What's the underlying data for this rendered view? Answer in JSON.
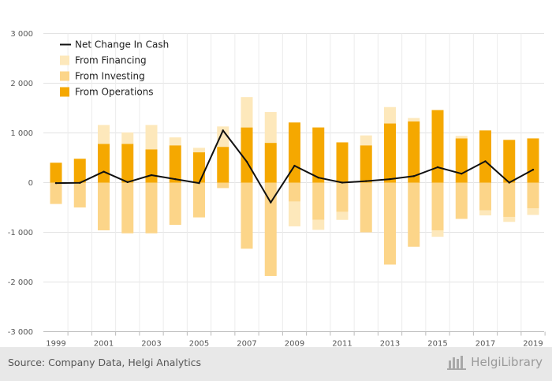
{
  "chart_data": {
    "type": "bar",
    "title": "",
    "xlabel": "",
    "ylabel": "",
    "ylim": [
      -3000,
      3000
    ],
    "yticks": [
      -3000,
      -2000,
      -1000,
      0,
      1000,
      2000,
      3000
    ],
    "ytick_labels": [
      "-3 000",
      "-2 000",
      "-1 000",
      "0",
      "1 000",
      "2 000",
      "3 000"
    ],
    "years": [
      1999,
      2000,
      2001,
      2002,
      2003,
      2004,
      2005,
      2006,
      2007,
      2008,
      2009,
      2010,
      2011,
      2012,
      2013,
      2014,
      2015,
      2016,
      2017,
      2018,
      2019
    ],
    "xtick_labels": [
      "1999",
      "2001",
      "2003",
      "2005",
      "2007",
      "2009",
      "2011",
      "2013",
      "2015",
      "2017",
      "2019"
    ],
    "grid": true,
    "legend_position": "top-left",
    "series": [
      {
        "name": "Net Change In Cash",
        "kind": "line",
        "color": "#111111",
        "values": [
          -10,
          -5,
          220,
          10,
          150,
          70,
          -10,
          1050,
          420,
          -400,
          340,
          100,
          0,
          30,
          70,
          130,
          310,
          180,
          430,
          0,
          260
        ]
      },
      {
        "name": "From Financing",
        "kind": "bar",
        "color": "#fde8bb",
        "values": [
          0,
          0,
          380,
          230,
          490,
          160,
          90,
          410,
          610,
          620,
          -500,
          -200,
          -160,
          200,
          330,
          70,
          -130,
          50,
          -100,
          -100,
          -130
        ]
      },
      {
        "name": "From Investing",
        "kind": "bar",
        "color": "#fcd589",
        "values": [
          -430,
          -500,
          -960,
          -1020,
          -1020,
          -850,
          -700,
          -110,
          -1330,
          -1880,
          -380,
          -750,
          -590,
          -1000,
          -1650,
          -1290,
          -960,
          -730,
          -560,
          -690,
          -520
        ]
      },
      {
        "name": "From Operations",
        "kind": "bar",
        "color": "#f5a800",
        "values": [
          400,
          480,
          780,
          780,
          670,
          750,
          610,
          720,
          1110,
          800,
          1210,
          1110,
          810,
          750,
          1190,
          1230,
          1460,
          890,
          1050,
          860,
          890
        ]
      }
    ]
  },
  "footer": {
    "source": "Source: Company Data, Helgi Analytics",
    "brand": "HelgiLibrary"
  }
}
